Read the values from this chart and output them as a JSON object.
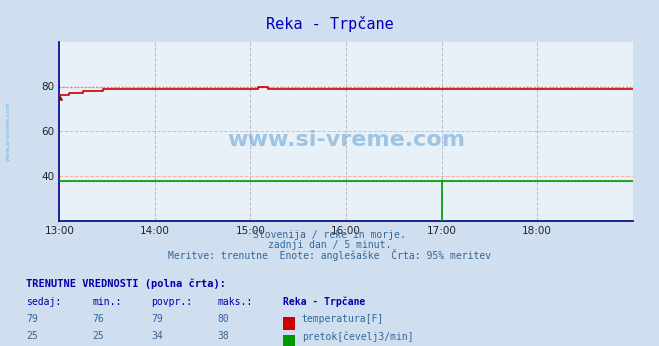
{
  "title": "Reka - Trpčane",
  "bg_color": "#d0dff0",
  "plot_bg_color": "#e8f0f8",
  "grid_color_h": "#ffaaaa",
  "grid_color_v": "#bbbbcc",
  "xlim": [
    0,
    288
  ],
  "ylim": [
    20,
    100
  ],
  "yticks": [
    40,
    60,
    80
  ],
  "xtick_labels": [
    "13:00",
    "14:00",
    "15:00",
    "16:00",
    "17:00",
    "18:00"
  ],
  "xtick_positions": [
    0,
    48,
    96,
    144,
    192,
    240
  ],
  "temp_color": "#cc0000",
  "flow_color": "#009900",
  "dashed_color_temp": "#ff6666",
  "dashed_color_flow": "#66cc66",
  "subtitle1": "Slovenija / reke in morje.",
  "subtitle2": "zadnji dan / 5 minut.",
  "subtitle3": "Meritve: trenutne  Enote: anglešaške  Črta: 95% meritev",
  "watermark_text": "www.si-vreme.com",
  "left_text": "www.si-vreme.com",
  "table_header": "TRENUTNE VREDNOSTI (polna črta):",
  "col_headers": [
    "sedaj:",
    "min.:",
    "povpr.:",
    "maks.:",
    "Reka - Trpčane"
  ],
  "row1_vals": [
    "79",
    "76",
    "79",
    "80"
  ],
  "row1_label": "temperatura[F]",
  "row2_vals": [
    "25",
    "25",
    "34",
    "38"
  ],
  "row2_label": "pretok[čevelj3/min]",
  "temp_max_line": 80,
  "flow_max_line": 38,
  "temp_start": 76,
  "flow_flat": 38,
  "spike_x": 192,
  "spike_y_min": 20,
  "spike_y_max": 38
}
